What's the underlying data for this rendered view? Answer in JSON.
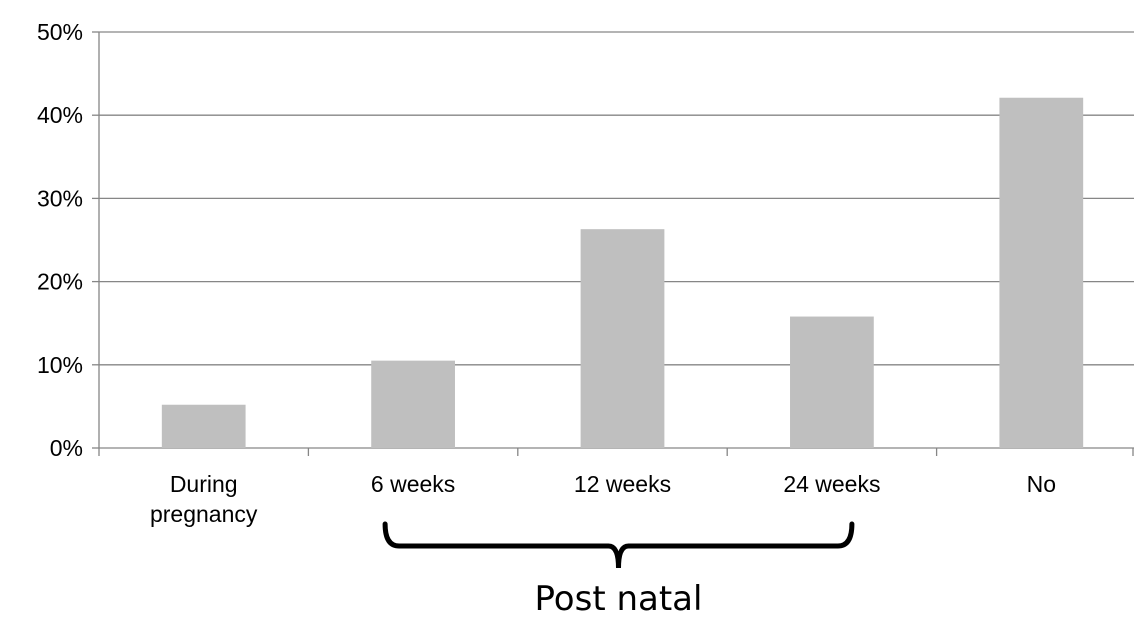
{
  "chart_data": {
    "type": "bar",
    "categories": [
      [
        "During",
        "pregnancy"
      ],
      [
        "6 weeks"
      ],
      [
        "12 weeks"
      ],
      [
        "24 weeks"
      ],
      [
        "No"
      ]
    ],
    "values": [
      5.2,
      10.5,
      26.3,
      15.8,
      42.1
    ],
    "yticks": [
      "0%",
      "10%",
      "20%",
      "30%",
      "40%",
      "50%"
    ],
    "ylim": [
      0,
      50
    ],
    "grid": true,
    "legend": "none",
    "title": "",
    "xlabel": "",
    "ylabel": "",
    "bar_color": "#bfbfbf",
    "grid_color": "#868686",
    "annotation": {
      "label": "Post natal",
      "spans_categories": [
        1,
        3
      ]
    }
  }
}
